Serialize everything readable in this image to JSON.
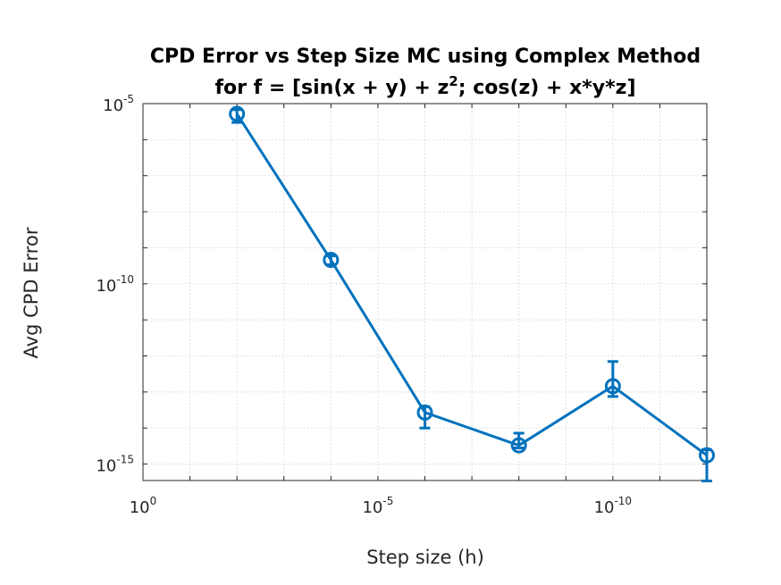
{
  "chart_data": {
    "type": "line",
    "title_line1": "CPD Error vs Step Size MC using Complex Method",
    "title_line2_prefix": "for f = [sin(x + y) + z",
    "title_line2_sup": "2",
    "title_line2_suffix": "; cos(z) + x*y*z]",
    "xlabel": "Step size (h)",
    "ylabel": "Avg CPD Error",
    "x_scale": "log",
    "y_scale": "log",
    "x_reversed": true,
    "xlim": [
      1,
      1e-12
    ],
    "ylim": [
      3.5e-16,
      1e-05
    ],
    "grid": true,
    "x_ticks": [
      {
        "base": "10",
        "exp": "0",
        "value": 1
      },
      {
        "base": "10",
        "exp": "-5",
        "value": 1e-05
      },
      {
        "base": "10",
        "exp": "-10",
        "value": 1e-10
      }
    ],
    "y_ticks": [
      {
        "base": "10",
        "exp": "-5",
        "value": 1e-05
      },
      {
        "base": "10",
        "exp": "-10",
        "value": 1e-10
      },
      {
        "base": "10",
        "exp": "-15",
        "value": 1e-15
      }
    ],
    "series": [
      {
        "color": "#0072BD",
        "x": [
          0.01,
          0.0001,
          1e-06,
          1e-08,
          1e-10,
          1e-12
        ],
        "y": [
          5.2e-06,
          4.6e-10,
          2.7e-14,
          3.3e-15,
          1.45e-13,
          1.75e-15
        ],
        "err_low": [
          3e-06,
          3.4e-10,
          1e-14,
          2.8e-15,
          7.5e-14,
          3.4e-16
        ],
        "err_high": [
          6.8e-06,
          6e-10,
          3.9e-14,
          7.2e-15,
          7e-13,
          2.5e-15
        ]
      }
    ]
  }
}
